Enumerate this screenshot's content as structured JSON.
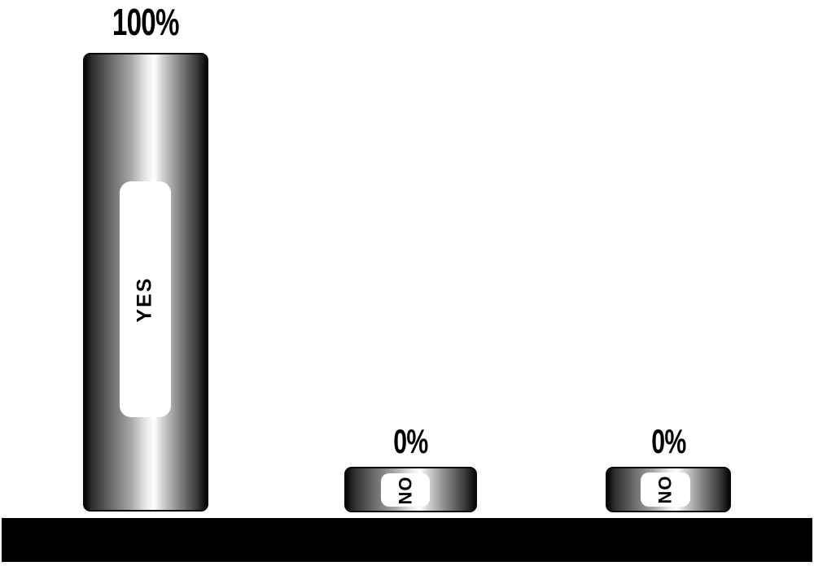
{
  "chart_data": {
    "type": "bar",
    "categories": [
      "YES",
      "NO",
      "NO"
    ],
    "values": [
      100,
      0,
      0
    ],
    "value_labels": [
      "100%",
      "0%",
      "0%"
    ],
    "ylim": [
      0,
      100
    ],
    "grid": false,
    "legend": "none",
    "orientation": "vertical",
    "style": {
      "bar_fill": "metallic horizontal gradient",
      "bar_gradient_stops": [
        "#050505",
        "#6b6b6b",
        "#ffffff",
        "#8d8d8d",
        "#060606"
      ],
      "bar_border_color": "#0a0a0a",
      "category_tag_background": "#ffffff",
      "category_text_rotation_deg": -90,
      "label_color": "#000000",
      "baseline_color": "#000000",
      "background_color": "#ffffff"
    }
  }
}
